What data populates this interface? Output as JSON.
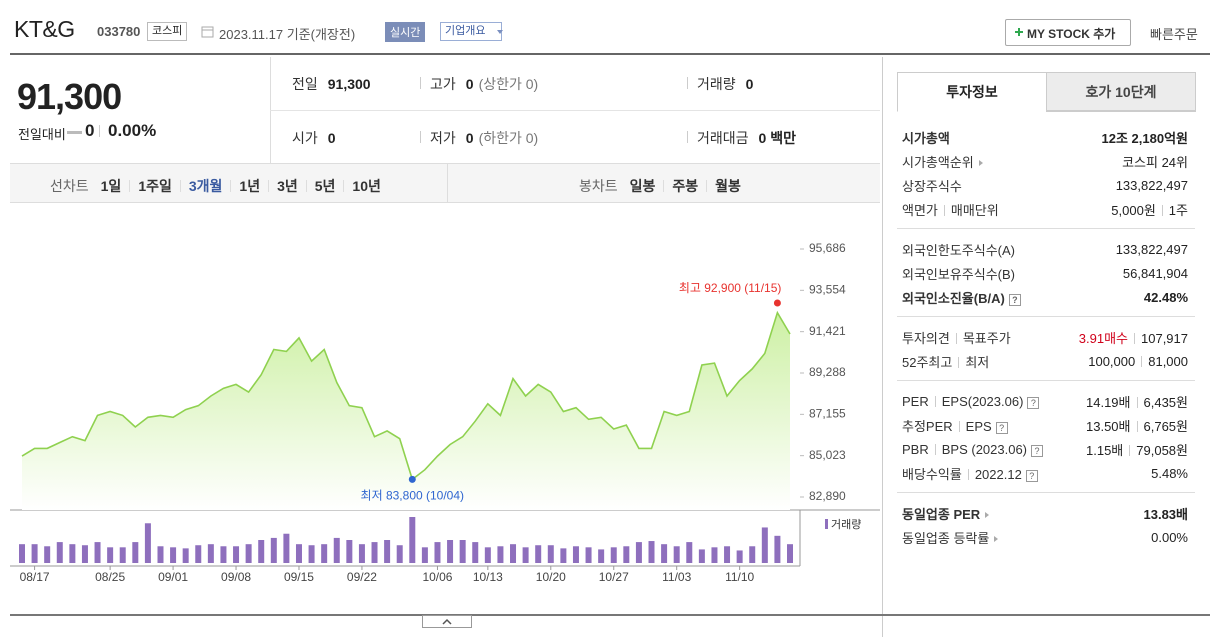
{
  "header": {
    "name": "KT&G",
    "code": "033780",
    "market": "코스피",
    "date": "2023.11.17 기준(개장전)",
    "realtime": "실시간",
    "overview": "기업개요",
    "mystock": "MY STOCK 추가",
    "quick": "빠른주문"
  },
  "quote": {
    "price": "91,300",
    "change_label": "전일대비",
    "change": "0",
    "rate": "0.00%",
    "cells": [
      {
        "label": "전일",
        "value": "91,300"
      },
      {
        "label": "고가",
        "value": "0",
        "note": "(상한가 0)"
      },
      {
        "label": "거래량",
        "value": "0"
      },
      {
        "label": "시가",
        "value": "0"
      },
      {
        "label": "저가",
        "value": "0",
        "note": "(하한가 0)"
      },
      {
        "label": "거래대금",
        "value": "0 백만"
      }
    ]
  },
  "periods": {
    "label": "선차트",
    "items": [
      "1일",
      "1주일",
      "3개월",
      "1년",
      "3년",
      "5년",
      "10년"
    ],
    "active": 2
  },
  "candles": {
    "label": "봉차트",
    "items": [
      "일봉",
      "주봉",
      "월봉"
    ]
  },
  "chart_data": {
    "type": "area",
    "color": "#8fd14f",
    "categories": [
      null,
      "08/17",
      null,
      null,
      null,
      null,
      null,
      "08/25",
      null,
      null,
      null,
      null,
      "09/01",
      null,
      null,
      null,
      null,
      "09/08",
      null,
      null,
      null,
      null,
      "09/15",
      null,
      null,
      null,
      null,
      "09/22",
      null,
      null,
      null,
      null,
      null,
      "10/06",
      null,
      null,
      null,
      "10/13",
      null,
      null,
      null,
      null,
      "10/20",
      null,
      null,
      null,
      null,
      "10/27",
      null,
      null,
      null,
      null,
      "11/03",
      null,
      null,
      null,
      null,
      "11/10",
      null,
      null,
      null,
      null
    ],
    "values": [
      85000,
      85400,
      85400,
      85700,
      86000,
      85800,
      87100,
      87300,
      87100,
      86500,
      87000,
      87100,
      87000,
      87400,
      87600,
      88100,
      88500,
      88700,
      88300,
      89200,
      90500,
      90400,
      91100,
      89900,
      90500,
      88800,
      87600,
      87500,
      86000,
      86300,
      85900,
      83800,
      84300,
      85000,
      85600,
      86000,
      86800,
      87700,
      87100,
      89000,
      88100,
      88700,
      88300,
      87300,
      87500,
      86900,
      87000,
      86400,
      86600,
      85400,
      85400,
      87300,
      87100,
      87300,
      89700,
      89800,
      88100,
      88900,
      89500,
      90300,
      92400,
      91300
    ],
    "ylim": [
      82890,
      95686
    ],
    "yticks": [
      {
        "value": 95686,
        "label": "95,686"
      },
      {
        "value": 93554,
        "label": "93,554"
      },
      {
        "value": 91421,
        "label": "91,421"
      },
      {
        "value": 89288,
        "label": "89,288"
      },
      {
        "value": 87155,
        "label": "87,155"
      },
      {
        "value": 85023,
        "label": "85,023"
      },
      {
        "value": 82890,
        "label": "82,890"
      }
    ],
    "grid": false,
    "high": {
      "label": "최고 92,900 (11/15)",
      "value": 92900,
      "color": "#e8332f"
    },
    "low": {
      "label": "최저 83,800 (10/04)",
      "value": 83800,
      "color": "#2f66d0"
    },
    "volume": {
      "name": "거래량",
      "color": "#8e6fbd",
      "values": [
        18,
        18,
        16,
        20,
        18,
        17,
        20,
        15,
        15,
        20,
        38,
        16,
        15,
        14,
        17,
        18,
        16,
        16,
        18,
        22,
        24,
        28,
        18,
        17,
        18,
        24,
        22,
        18,
        20,
        22,
        17,
        44,
        15,
        20,
        22,
        22,
        20,
        15,
        16,
        18,
        15,
        17,
        17,
        14,
        16,
        15,
        13,
        15,
        16,
        20,
        21,
        18,
        16,
        20,
        13,
        15,
        16,
        12,
        16,
        34,
        26,
        18
      ]
    }
  },
  "info": {
    "tabs": [
      "투자정보",
      "호가 10단계"
    ],
    "active": 0,
    "sections": [
      [
        {
          "label": [
            "시가총액"
          ],
          "value": [
            "12조 2,180억원"
          ],
          "bold": true
        },
        {
          "label": [
            "시가총액순위"
          ],
          "value": [
            "코스피 24위"
          ],
          "arrow": true
        },
        {
          "label": [
            "상장주식수"
          ],
          "value": [
            "133,822,497"
          ]
        },
        {
          "label": [
            "액면가",
            "매매단위"
          ],
          "value": [
            "5,000원",
            "1주"
          ]
        }
      ],
      [
        {
          "label": [
            "외국인한도주식수(A)"
          ],
          "value": [
            "133,822,497"
          ]
        },
        {
          "label": [
            "외국인보유주식수(B)"
          ],
          "value": [
            "56,841,904"
          ]
        },
        {
          "label": [
            "외국인소진율(B/A)"
          ],
          "value": [
            "42.48%"
          ],
          "bold": true,
          "help": true
        }
      ],
      [
        {
          "label": [
            "투자의견",
            "목표주가"
          ],
          "value": [
            "3.91매수",
            "107,917"
          ],
          "value_color": "#d0021b"
        },
        {
          "label": [
            "52주최고",
            "최저"
          ],
          "value": [
            "100,000",
            "81,000"
          ]
        }
      ],
      [
        {
          "label": [
            "PER",
            "EPS(2023.06)"
          ],
          "value": [
            "14.19배",
            "6,435원"
          ],
          "help": true
        },
        {
          "label": [
            "추정PER",
            "EPS"
          ],
          "value": [
            "13.50배",
            "6,765원"
          ],
          "help": true
        },
        {
          "label": [
            "PBR",
            "BPS (2023.06)"
          ],
          "value": [
            "1.15배",
            "79,058원"
          ],
          "help": true
        },
        {
          "label": [
            "배당수익률",
            "2022.12"
          ],
          "value": [
            "5.48%"
          ],
          "help": true
        }
      ],
      [
        {
          "label": [
            "동일업종 PER"
          ],
          "value": [
            "13.83배"
          ],
          "bold": true,
          "arrow": true
        },
        {
          "label": [
            "동일업종 등락률"
          ],
          "value": [
            "0.00%"
          ],
          "arrow": true
        }
      ]
    ]
  }
}
